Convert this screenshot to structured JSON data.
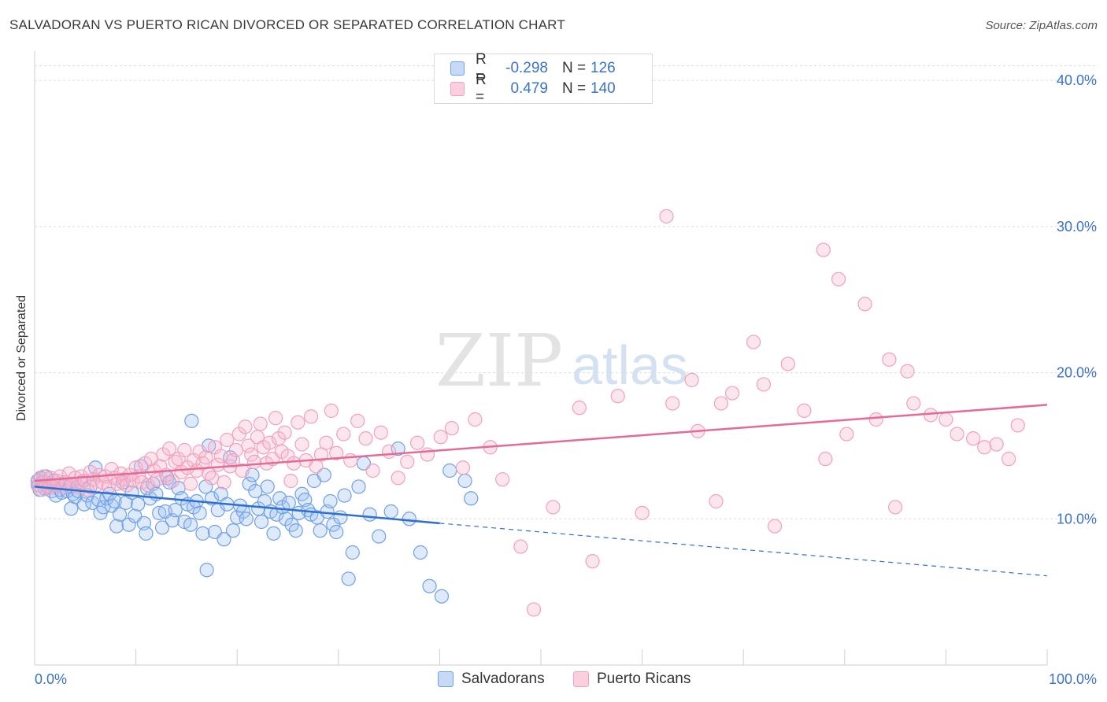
{
  "title": "SALVADORAN VS PUERTO RICAN DIVORCED OR SEPARATED CORRELATION CHART",
  "source": "Source: ZipAtlas.com",
  "watermark": {
    "zip": "ZIP",
    "atlas": "atlas"
  },
  "legend": {
    "rows": [
      {
        "r_label": "R =",
        "r_value": "-0.298",
        "n_label": "N =",
        "n_value": "126",
        "color": "#6fa0e8"
      },
      {
        "r_label": "R =",
        "r_value": "0.479",
        "n_label": "N =",
        "n_value": "140",
        "color": "#f2a0bc"
      }
    ]
  },
  "bottom_legend": [
    {
      "label": "Salvadorans",
      "color": "#6fa0e8"
    },
    {
      "label": "Puerto Ricans",
      "color": "#f2a0bc"
    }
  ],
  "chart_data": {
    "type": "scatter",
    "ylabel": "Divorced or Separated",
    "xlim": [
      0,
      100
    ],
    "ylim": [
      0,
      42
    ],
    "x_tick_labels": [
      "0.0%",
      "100.0%"
    ],
    "y_ticks": [
      10,
      20,
      30,
      40
    ],
    "y_tick_labels": [
      "10.0%",
      "20.0%",
      "30.0%",
      "40.0%"
    ],
    "grid": true,
    "series": [
      {
        "name": "Salvadorans",
        "color": "#6fa0e8",
        "trend": {
          "x0": 0,
          "y0": 12.2,
          "x1": 40,
          "y1": 9.7,
          "x_dash_end": 100,
          "y_dash_end": 6.1
        },
        "points": [
          [
            0.3,
            12.6
          ],
          [
            0.4,
            12.3
          ],
          [
            0.5,
            12.0
          ],
          [
            0.6,
            12.8
          ],
          [
            0.8,
            12.5
          ],
          [
            1.0,
            12.1
          ],
          [
            1.1,
            12.9
          ],
          [
            1.3,
            12.2
          ],
          [
            1.5,
            12.4
          ],
          [
            1.7,
            11.9
          ],
          [
            1.9,
            12.6
          ],
          [
            2.1,
            11.6
          ],
          [
            2.3,
            12.3
          ],
          [
            2.5,
            12.0
          ],
          [
            2.7,
            11.8
          ],
          [
            3.0,
            12.5
          ],
          [
            3.2,
            11.9
          ],
          [
            3.5,
            12.2
          ],
          [
            3.8,
            11.7
          ],
          [
            4.0,
            11.5
          ],
          [
            3.6,
            10.7
          ],
          [
            4.3,
            11.9
          ],
          [
            4.6,
            12.5
          ],
          [
            4.9,
            11.0
          ],
          [
            5.2,
            11.6
          ],
          [
            5.5,
            12.2
          ],
          [
            5.7,
            11.1
          ],
          [
            6.0,
            13.5
          ],
          [
            6.3,
            11.3
          ],
          [
            6.5,
            10.4
          ],
          [
            6.8,
            10.8
          ],
          [
            7.1,
            11.4
          ],
          [
            7.4,
            11.7
          ],
          [
            7.6,
            10.9
          ],
          [
            7.9,
            11.2
          ],
          [
            8.1,
            9.5
          ],
          [
            8.4,
            10.3
          ],
          [
            8.7,
            12.5
          ],
          [
            9.0,
            11.1
          ],
          [
            9.3,
            9.6
          ],
          [
            9.6,
            11.8
          ],
          [
            9.9,
            10.2
          ],
          [
            10.2,
            11.0
          ],
          [
            10.5,
            13.6
          ],
          [
            10.8,
            9.7
          ],
          [
            11.1,
            12.1
          ],
          [
            11.4,
            11.4
          ],
          [
            11.7,
            12.4
          ],
          [
            12.0,
            11.7
          ],
          [
            12.3,
            10.4
          ],
          [
            12.6,
            9.4
          ],
          [
            12.9,
            10.5
          ],
          [
            13.1,
            12.8
          ],
          [
            13.3,
            12.5
          ],
          [
            13.6,
            9.9
          ],
          [
            13.9,
            10.6
          ],
          [
            14.2,
            12.1
          ],
          [
            14.5,
            11.4
          ],
          [
            14.8,
            9.8
          ],
          [
            15.1,
            11.0
          ],
          [
            15.4,
            9.6
          ],
          [
            15.7,
            10.8
          ],
          [
            16.0,
            11.2
          ],
          [
            16.3,
            10.4
          ],
          [
            16.6,
            9.0
          ],
          [
            16.9,
            12.2
          ],
          [
            17.2,
            15.0
          ],
          [
            17.5,
            11.4
          ],
          [
            17.8,
            9.1
          ],
          [
            18.1,
            10.6
          ],
          [
            18.4,
            11.7
          ],
          [
            18.7,
            8.6
          ],
          [
            19.0,
            11.0
          ],
          [
            19.3,
            14.2
          ],
          [
            19.6,
            9.2
          ],
          [
            20.0,
            10.1
          ],
          [
            20.3,
            10.9
          ],
          [
            20.6,
            10.5
          ],
          [
            20.9,
            10.0
          ],
          [
            21.2,
            12.4
          ],
          [
            21.5,
            13.0
          ],
          [
            21.8,
            11.9
          ],
          [
            22.1,
            10.7
          ],
          [
            22.4,
            9.8
          ],
          [
            22.7,
            11.2
          ],
          [
            23.0,
            12.2
          ],
          [
            23.3,
            10.5
          ],
          [
            23.6,
            9.0
          ],
          [
            23.9,
            10.3
          ],
          [
            24.2,
            11.4
          ],
          [
            24.5,
            10.8
          ],
          [
            24.8,
            10.0
          ],
          [
            25.1,
            11.1
          ],
          [
            25.4,
            9.6
          ],
          [
            25.8,
            9.2
          ],
          [
            26.1,
            10.4
          ],
          [
            26.4,
            11.7
          ],
          [
            26.7,
            11.3
          ],
          [
            27.0,
            10.6
          ],
          [
            27.3,
            10.3
          ],
          [
            27.6,
            12.6
          ],
          [
            27.9,
            10.1
          ],
          [
            28.2,
            9.2
          ],
          [
            28.6,
            13.0
          ],
          [
            28.9,
            10.5
          ],
          [
            29.2,
            11.2
          ],
          [
            29.5,
            9.6
          ],
          [
            29.8,
            9.1
          ],
          [
            30.2,
            10.1
          ],
          [
            30.6,
            11.6
          ],
          [
            31.0,
            5.9
          ],
          [
            31.4,
            7.7
          ],
          [
            32.0,
            12.2
          ],
          [
            32.5,
            13.8
          ],
          [
            33.1,
            10.3
          ],
          [
            34.0,
            8.8
          ],
          [
            35.2,
            10.5
          ],
          [
            35.9,
            14.8
          ],
          [
            37.0,
            10.0
          ],
          [
            38.1,
            7.7
          ],
          [
            39.0,
            5.4
          ],
          [
            40.2,
            4.7
          ],
          [
            41.0,
            13.3
          ],
          [
            42.5,
            12.6
          ],
          [
            43.1,
            11.4
          ],
          [
            15.5,
            16.7
          ],
          [
            11.0,
            9.0
          ],
          [
            17.0,
            6.5
          ]
        ]
      },
      {
        "name": "Puerto Ricans",
        "color": "#f2a0bc",
        "trend": {
          "x0": 0,
          "y0": 12.6,
          "x1": 100,
          "y1": 17.8
        },
        "points": [
          [
            0.3,
            12.3
          ],
          [
            0.5,
            12.7
          ],
          [
            0.7,
            12.0
          ],
          [
            0.9,
            12.9
          ],
          [
            1.1,
            12.4
          ],
          [
            1.4,
            12.1
          ],
          [
            1.6,
            12.8
          ],
          [
            1.9,
            12.3
          ],
          [
            2.2,
            12.6
          ],
          [
            2.5,
            12.9
          ],
          [
            2.8,
            12.2
          ],
          [
            3.1,
            12.5
          ],
          [
            3.4,
            13.1
          ],
          [
            3.7,
            12.4
          ],
          [
            4.0,
            12.8
          ],
          [
            4.3,
            12.2
          ],
          [
            4.6,
            12.9
          ],
          [
            4.9,
            12.6
          ],
          [
            5.2,
            12.0
          ],
          [
            5.5,
            13.2
          ],
          [
            5.8,
            12.7
          ],
          [
            6.1,
            12.3
          ],
          [
            6.4,
            13.0
          ],
          [
            6.7,
            12.5
          ],
          [
            7.0,
            12.9
          ],
          [
            7.3,
            12.2
          ],
          [
            7.6,
            13.4
          ],
          [
            7.9,
            12.8
          ],
          [
            8.2,
            12.4
          ],
          [
            8.5,
            13.1
          ],
          [
            8.8,
            12.7
          ],
          [
            9.1,
            12.3
          ],
          [
            9.4,
            13.0
          ],
          [
            9.7,
            12.6
          ],
          [
            10.0,
            13.5
          ],
          [
            10.3,
            12.9
          ],
          [
            10.6,
            12.5
          ],
          [
            10.9,
            13.8
          ],
          [
            11.2,
            12.3
          ],
          [
            11.5,
            14.1
          ],
          [
            11.8,
            13.3
          ],
          [
            12.1,
            12.7
          ],
          [
            12.4,
            13.6
          ],
          [
            12.7,
            14.4
          ],
          [
            13.0,
            13.0
          ],
          [
            13.3,
            14.8
          ],
          [
            13.6,
            12.6
          ],
          [
            13.9,
            13.9
          ],
          [
            14.2,
            14.1
          ],
          [
            14.5,
            13.2
          ],
          [
            14.8,
            14.7
          ],
          [
            15.1,
            13.5
          ],
          [
            15.4,
            12.4
          ],
          [
            15.7,
            14.0
          ],
          [
            16.0,
            13.3
          ],
          [
            16.3,
            14.6
          ],
          [
            16.6,
            13.8
          ],
          [
            16.9,
            14.2
          ],
          [
            17.2,
            13.1
          ],
          [
            17.5,
            12.8
          ],
          [
            17.8,
            14.9
          ],
          [
            18.1,
            13.7
          ],
          [
            18.4,
            14.3
          ],
          [
            18.7,
            12.5
          ],
          [
            19.0,
            15.4
          ],
          [
            19.3,
            13.6
          ],
          [
            19.6,
            14.0
          ],
          [
            19.9,
            14.7
          ],
          [
            20.2,
            15.8
          ],
          [
            20.5,
            13.3
          ],
          [
            20.8,
            16.3
          ],
          [
            21.1,
            15.0
          ],
          [
            21.4,
            14.4
          ],
          [
            21.7,
            13.9
          ],
          [
            22.0,
            15.6
          ],
          [
            22.3,
            16.5
          ],
          [
            22.6,
            14.9
          ],
          [
            22.9,
            13.8
          ],
          [
            23.2,
            15.2
          ],
          [
            23.5,
            14.1
          ],
          [
            23.8,
            16.9
          ],
          [
            24.1,
            15.5
          ],
          [
            24.4,
            14.6
          ],
          [
            24.7,
            15.9
          ],
          [
            25.0,
            14.3
          ],
          [
            25.3,
            12.6
          ],
          [
            25.6,
            13.8
          ],
          [
            26.0,
            16.6
          ],
          [
            26.4,
            15.1
          ],
          [
            26.8,
            14.0
          ],
          [
            27.3,
            17.0
          ],
          [
            27.8,
            13.6
          ],
          [
            28.3,
            14.4
          ],
          [
            28.8,
            15.2
          ],
          [
            29.3,
            17.4
          ],
          [
            29.8,
            14.5
          ],
          [
            30.5,
            15.8
          ],
          [
            31.2,
            14.0
          ],
          [
            31.9,
            16.7
          ],
          [
            32.7,
            15.5
          ],
          [
            33.4,
            13.3
          ],
          [
            34.2,
            15.9
          ],
          [
            35.0,
            14.6
          ],
          [
            35.9,
            12.8
          ],
          [
            36.8,
            13.9
          ],
          [
            37.8,
            15.2
          ],
          [
            38.8,
            14.4
          ],
          [
            40.1,
            15.6
          ],
          [
            41.2,
            16.2
          ],
          [
            42.3,
            13.5
          ],
          [
            43.5,
            16.8
          ],
          [
            45.0,
            14.9
          ],
          [
            46.2,
            12.7
          ],
          [
            48.0,
            8.1
          ],
          [
            49.3,
            3.8
          ],
          [
            51.2,
            10.8
          ],
          [
            53.8,
            17.6
          ],
          [
            55.1,
            7.1
          ],
          [
            57.6,
            18.4
          ],
          [
            60.0,
            10.4
          ],
          [
            62.4,
            30.7
          ],
          [
            63.0,
            17.9
          ],
          [
            64.9,
            19.5
          ],
          [
            65.5,
            16.0
          ],
          [
            67.3,
            11.2
          ],
          [
            67.8,
            17.9
          ],
          [
            68.9,
            18.6
          ],
          [
            71.0,
            22.1
          ],
          [
            72.0,
            19.2
          ],
          [
            73.1,
            9.5
          ],
          [
            74.4,
            20.6
          ],
          [
            76.0,
            17.4
          ],
          [
            77.9,
            28.4
          ],
          [
            78.1,
            14.1
          ],
          [
            79.4,
            26.4
          ],
          [
            80.2,
            15.8
          ],
          [
            82.0,
            24.7
          ],
          [
            83.1,
            16.8
          ],
          [
            84.4,
            20.9
          ],
          [
            85.0,
            10.8
          ],
          [
            86.2,
            20.1
          ],
          [
            86.8,
            17.9
          ],
          [
            88.5,
            17.1
          ],
          [
            90.0,
            16.8
          ],
          [
            91.1,
            15.8
          ],
          [
            92.7,
            15.5
          ],
          [
            93.8,
            14.9
          ],
          [
            95.0,
            15.1
          ],
          [
            96.2,
            14.1
          ],
          [
            97.1,
            16.4
          ]
        ]
      }
    ]
  }
}
